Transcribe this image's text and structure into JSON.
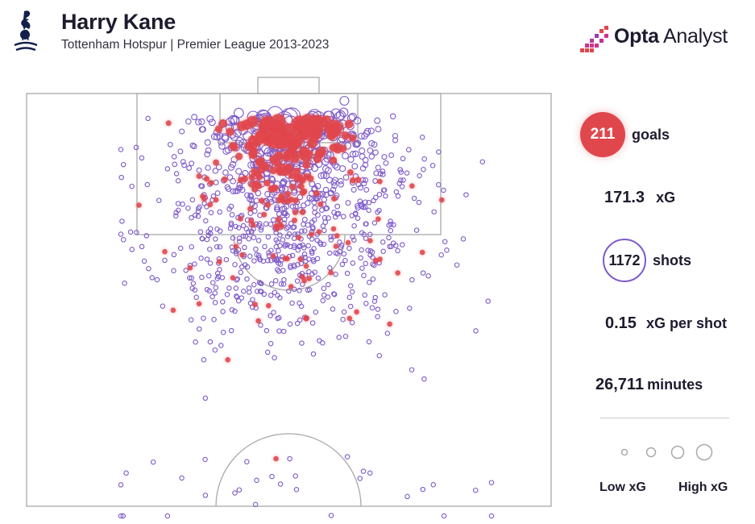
{
  "header": {
    "title": "Harry Kane",
    "subtitle": "Tottenham Hotspur | Premier League 2013-2023",
    "crest_icon": "tottenham-crest-icon",
    "brand_bold": "Opta",
    "brand_light": "Analyst"
  },
  "stats": {
    "goals": "211",
    "goals_label": "goals",
    "xg": "171.3",
    "xg_label": "xG",
    "shots": "1172",
    "shots_label": "shots",
    "xg_per_shot": "0.15",
    "xg_per_shot_label": "xG per shot",
    "minutes": "26,711",
    "minutes_label": "minutes"
  },
  "legend": {
    "low_label": "Low xG",
    "high_label": "High xG",
    "sizes": [
      0.03,
      0.08,
      0.15,
      0.3
    ]
  },
  "colors": {
    "goal": "#e0474c",
    "shot": "#7e5bc9",
    "pitch_line": "#a9a9a9"
  },
  "chart_data": {
    "type": "scatter",
    "title": "Harry Kane",
    "subtitle": "Tottenham Hotspur | Premier League 2013-2023",
    "series": [
      {
        "name": "goals",
        "count": 211,
        "total_xg": 171.3
      },
      {
        "name": "shots",
        "count": 1172
      }
    ],
    "coordinate_system": "attacking half of the pitch, goal at top",
    "x_range": [
      0,
      100
    ],
    "y_range": [
      50,
      100
    ]
  }
}
